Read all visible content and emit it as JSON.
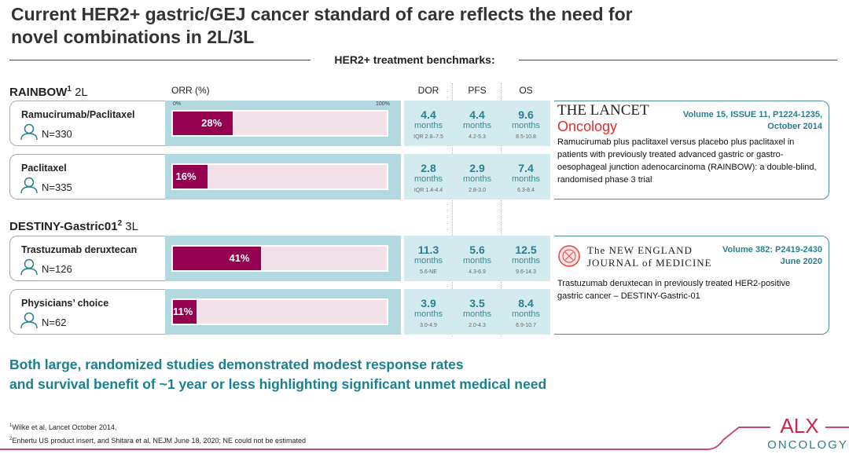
{
  "title": "Current HER2+ gastric/GEJ cancer standard of care reflects the need for novel combinations in 2L/3L",
  "benchmarks_label": "HER2+ treatment benchmarks:",
  "columns": {
    "orr": "ORR (%)",
    "dor": "DOR",
    "pfs": "PFS",
    "os": "OS",
    "orr_min": "0%",
    "orr_max": "100%"
  },
  "colors": {
    "bar": "#960050",
    "track": "#f3e1ea",
    "band": "#b2d9df",
    "metrics": "#d3eaee",
    "accent": "#1a8090"
  },
  "sections": [
    {
      "name": "RAINBOW",
      "sup": "1",
      "line": "2L",
      "arms": [
        {
          "name": "Ramucirumab/Paclitaxel",
          "n": "N=330",
          "orr": 28,
          "orr_label": "28%",
          "dor": "4.4",
          "dor_r": "IQR 2.8–7.5",
          "pfs": "4.4",
          "pfs_r": "4.2-5.3",
          "os": "9.6",
          "os_r": "8.5-10.8"
        },
        {
          "name": "Paclitaxel",
          "n": "N=335",
          "orr": 16,
          "orr_label": "16%",
          "dor": "2.8",
          "dor_r": "IQR 1.4-4.4",
          "pfs": "2.9",
          "pfs_r": "2.8-3.0",
          "os": "7.4",
          "os_r": "6.3-8.4"
        }
      ],
      "ref": {
        "journal1": "THE LANCET",
        "journal2": "Oncology",
        "volume": "Volume 15, ISSUE 11, P1224-1235,",
        "date": "October 2014",
        "text": "Ramucirumab plus paclitaxel versus placebo plus paclitaxel in patients with previously treated advanced gastric or gastro-oesophageal junction adenocarcinoma (RAINBOW): a double-blind, randomised phase 3 trial"
      }
    },
    {
      "name": "DESTINY-Gastric01",
      "sup": "2",
      "line": "3L",
      "arms": [
        {
          "name": "Trastuzumab deruxtecan",
          "n": "N=126",
          "orr": 41,
          "orr_label": "41%",
          "dor": "11.3",
          "dor_r": "5.6-NE",
          "pfs": "5.6",
          "pfs_r": "4.3-6.9",
          "os": "12.5",
          "os_r": "9.6-14.3"
        },
        {
          "name": "Physicians’ choice",
          "n": "N=62",
          "orr": 11,
          "orr_label": "11%",
          "dor": "3.9",
          "dor_r": "3.0-4.9",
          "pfs": "3.5",
          "pfs_r": "2.0-4.3",
          "os": "8.4",
          "os_r": "6.9-10.7"
        }
      ],
      "ref": {
        "journal1": "The NEW ENGLAND",
        "journal2": "JOURNAL of MEDICINE",
        "volume": "Volume 382: P2419-2430",
        "date": "June 2020",
        "text": "Trastuzumab deruxtecan in previously treated HER2-positive gastric cancer – DESTINY-Gastric-01"
      }
    }
  ],
  "unit": "months",
  "conclusion": [
    "Both large, randomized studies demonstrated modest response rates",
    "and survival benefit of ~1 year or less highlighting significant unmet medical need"
  ],
  "footnotes": [
    {
      "sup": "1",
      "text": "Wilke et al, Lancet October 2014,"
    },
    {
      "sup": "2",
      "text": "Enhertu US product insert, and Shitara et al, NEJM June 18, 2020; NE could not be estimated"
    }
  ],
  "logo": {
    "top": "ALX",
    "bottom": "ONCOLOGY"
  }
}
